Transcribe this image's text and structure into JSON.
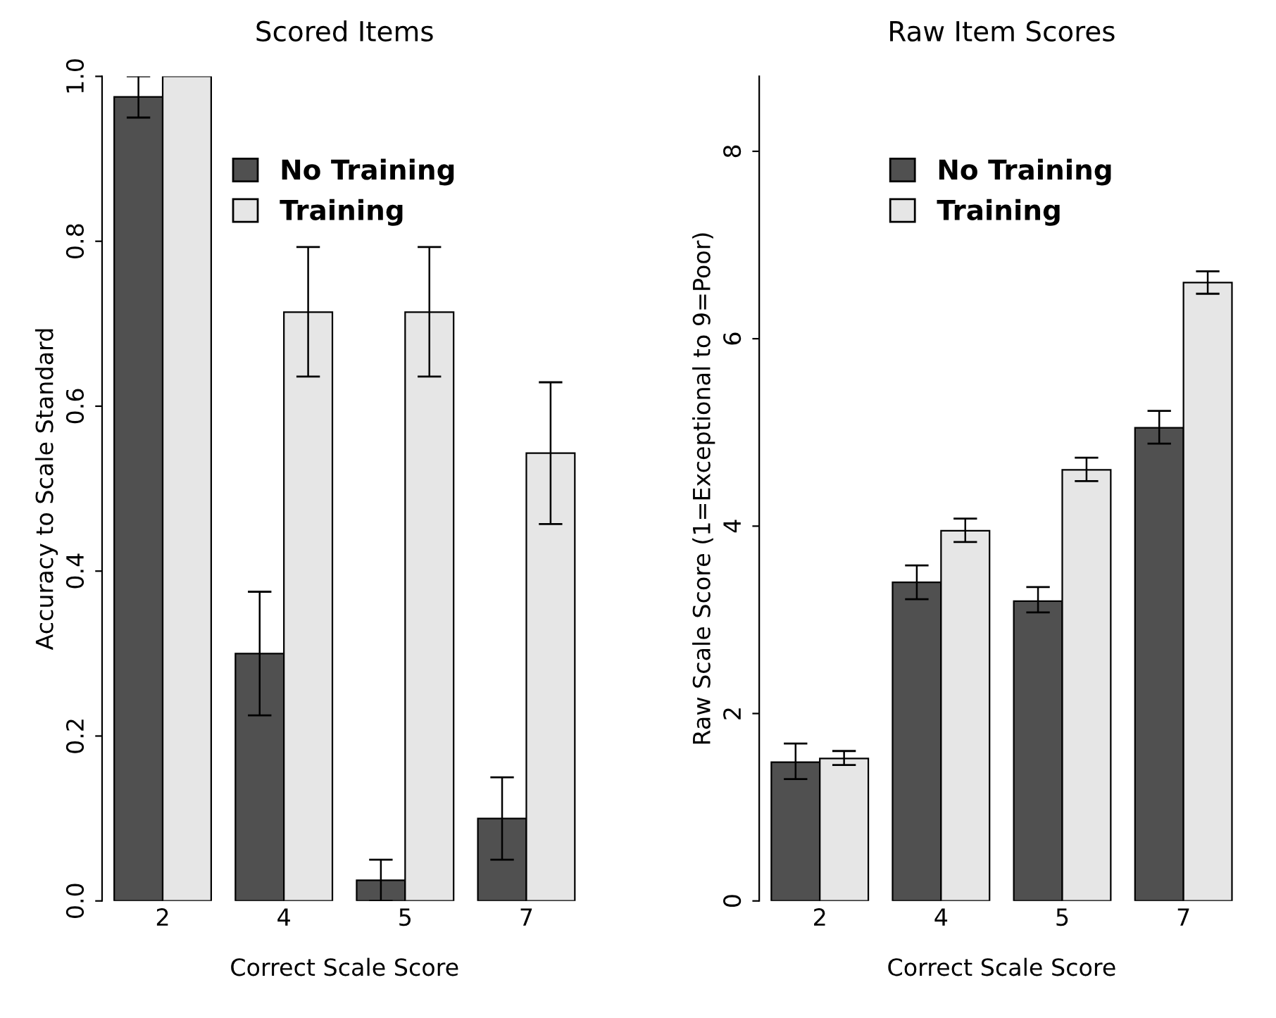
{
  "chart_data": [
    {
      "type": "bar",
      "title": "Scored Items",
      "xlabel": "Correct Scale Score",
      "ylabel": "Accuracy to Scale Standard",
      "categories": [
        "2",
        "4",
        "5",
        "7"
      ],
      "ylim": [
        0,
        1.0
      ],
      "yticks": [
        {
          "value": 0,
          "label": "0.0"
        },
        0.2,
        0.4,
        0.6,
        0.8,
        {
          "value": 1.0,
          "label": "1.0"
        }
      ],
      "grid": false,
      "legend": "top",
      "series": [
        {
          "name": "No Training",
          "color": "#505050",
          "values": [
            0.975,
            0.3,
            0.025,
            0.1
          ],
          "errors": [
            [
              0.95,
              1.0
            ],
            [
              0.225,
              0.375
            ],
            [
              0.0,
              0.05
            ],
            [
              0.05,
              0.15
            ]
          ]
        },
        {
          "name": "Training",
          "color": "#e6e6e6",
          "values": [
            1.0,
            0.714,
            0.714,
            0.543
          ],
          "errors": [
            null,
            [
              0.636,
              0.793
            ],
            [
              0.636,
              0.793
            ],
            [
              0.457,
              0.629
            ]
          ]
        }
      ]
    },
    {
      "type": "bar",
      "title": "Raw Item Scores",
      "xlabel": "Correct Scale Score",
      "ylabel": "Raw Scale Score (1=Exceptional to 9=Poor)",
      "categories": [
        "2",
        "4",
        "5",
        "7"
      ],
      "ylim": [
        0,
        8.8
      ],
      "yticks": [
        0,
        2,
        4,
        6,
        8
      ],
      "grid": false,
      "legend": "top",
      "series": [
        {
          "name": "No Training",
          "color": "#505050",
          "values": [
            1.48,
            3.4,
            3.2,
            5.05
          ],
          "errors": [
            [
              1.3,
              1.68
            ],
            [
              3.22,
              3.58
            ],
            [
              3.08,
              3.35
            ],
            [
              4.88,
              5.23
            ]
          ]
        },
        {
          "name": "Training",
          "color": "#e6e6e6",
          "values": [
            1.52,
            3.95,
            4.6,
            6.6
          ],
          "errors": [
            [
              1.45,
              1.6
            ],
            [
              3.83,
              4.08
            ],
            [
              4.48,
              4.73
            ],
            [
              6.48,
              6.72
            ]
          ]
        }
      ]
    }
  ]
}
